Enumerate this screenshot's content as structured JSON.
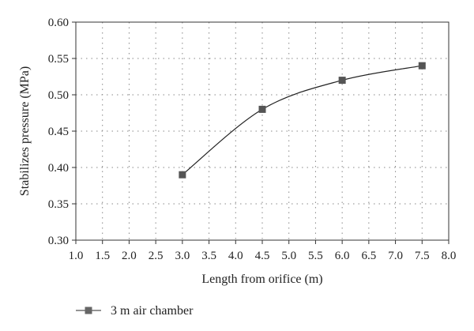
{
  "chart_data": {
    "type": "line",
    "xlabel": "Length from orifice (m)",
    "ylabel": "Stabilizes pressure (MPa)",
    "xlim": [
      1.0,
      8.0
    ],
    "ylim": [
      0.3,
      0.6
    ],
    "x_ticks": [
      "1.0",
      "1.5",
      "2.0",
      "2.5",
      "3.0",
      "3.5",
      "4.0",
      "4.5",
      "5.0",
      "5.5",
      "6.0",
      "6.5",
      "7.0",
      "7.5",
      "8.0"
    ],
    "y_ticks": [
      "0.30",
      "0.35",
      "0.40",
      "0.45",
      "0.50",
      "0.55",
      "0.60"
    ],
    "grid": true,
    "legend_position": "bottom-left",
    "series": [
      {
        "name": "3 m air chamber",
        "x": [
          3.0,
          4.5,
          6.0,
          7.5
        ],
        "y": [
          0.39,
          0.48,
          0.52,
          0.54
        ],
        "color": "#555555",
        "marker": "square"
      }
    ]
  }
}
